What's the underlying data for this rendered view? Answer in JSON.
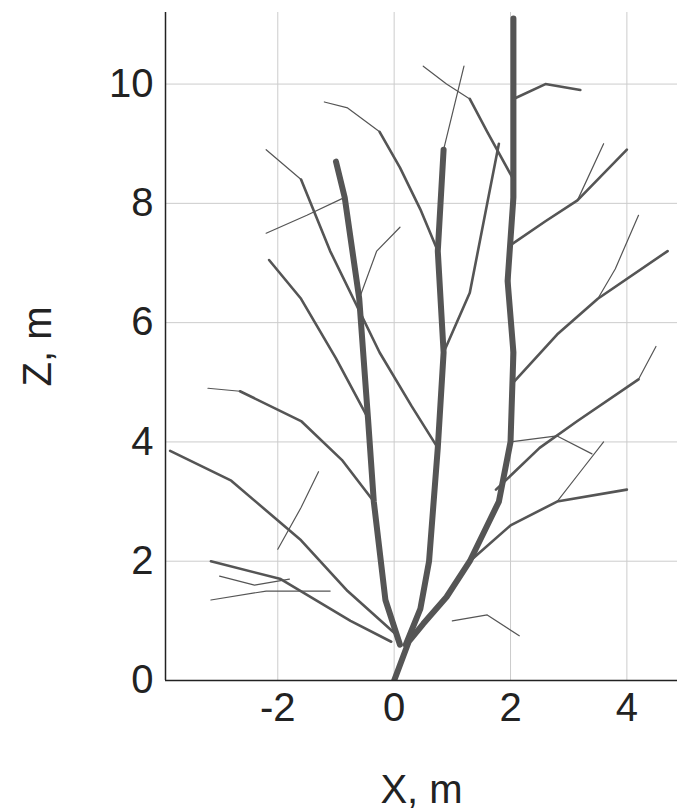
{
  "chart_data": {
    "type": "line",
    "xlabel": "X, m",
    "ylabel": "Z, m",
    "xlim": [
      -3.93,
      4.87
    ],
    "ylim": [
      0,
      11.2
    ],
    "xticks": [
      -2,
      0,
      2,
      4
    ],
    "yticks": [
      0,
      2,
      4,
      6,
      8,
      10
    ],
    "grid": true,
    "color": "#555555",
    "stems": [
      {
        "x": [
          0,
          0.25,
          0.5,
          0.9,
          1.3,
          1.8,
          2.0,
          2.05,
          1.95,
          2.05,
          2.05,
          2.05
        ],
        "z": [
          0,
          0.65,
          0.95,
          1.4,
          2.0,
          3.0,
          4.0,
          5.5,
          6.7,
          8.1,
          9.75,
          11.1
        ]
      },
      {
        "x": [
          0.2,
          0.45,
          0.6,
          0.75,
          0.85,
          0.75,
          0.85
        ],
        "z": [
          0.6,
          1.2,
          2.0,
          3.9,
          5.5,
          7.2,
          8.9
        ]
      },
      {
        "x": [
          0.1,
          -0.15,
          -0.35,
          -0.45,
          -0.6,
          -0.85,
          -1.0
        ],
        "z": [
          0.6,
          1.35,
          3.0,
          4.4,
          6.4,
          8.1,
          8.7
        ]
      }
    ],
    "branches": [
      {
        "x": [
          -0.05,
          -0.75,
          -1.95,
          -3.15
        ],
        "z": [
          0.65,
          1.0,
          1.7,
          2.0
        ]
      },
      {
        "x": [
          0.0,
          -0.8,
          -1.6,
          -2.8,
          -3.85
        ],
        "z": [
          0.8,
          1.5,
          2.35,
          3.35,
          3.85
        ]
      },
      {
        "x": [
          1.75,
          2.5,
          3.15,
          4.2
        ],
        "z": [
          3.2,
          3.9,
          4.35,
          5.05
        ]
      },
      {
        "x": [
          2.05,
          2.8,
          3.5,
          4.7
        ],
        "z": [
          5.0,
          5.8,
          6.4,
          7.2
        ]
      },
      {
        "x": [
          2.0,
          2.6,
          3.15,
          4.0
        ],
        "z": [
          7.3,
          7.7,
          8.05,
          8.9
        ]
      },
      {
        "x": [
          2.05,
          1.6,
          1.3
        ],
        "z": [
          8.4,
          9.2,
          9.75
        ]
      },
      {
        "x": [
          1.3,
          2.0,
          2.8,
          4.0
        ],
        "z": [
          2.0,
          2.6,
          3.0,
          3.2
        ]
      },
      {
        "x": [
          0.75,
          0.45,
          0.1,
          -0.25
        ],
        "z": [
          7.2,
          7.9,
          8.6,
          9.2
        ]
      },
      {
        "x": [
          0.75,
          0.3,
          -0.25,
          -1.1,
          -1.6
        ],
        "z": [
          3.9,
          4.6,
          5.5,
          7.2,
          8.4
        ]
      },
      {
        "x": [
          -0.35,
          -0.9,
          -1.6,
          -2.65
        ],
        "z": [
          3.0,
          3.7,
          4.35,
          4.85
        ]
      },
      {
        "x": [
          -0.45,
          -1.0,
          -1.6,
          -2.15
        ],
        "z": [
          4.4,
          5.4,
          6.4,
          7.05
        ]
      },
      {
        "x": [
          0.85,
          1.3,
          1.6,
          1.8
        ],
        "z": [
          5.5,
          6.5,
          8.0,
          9.0
        ]
      },
      {
        "x": [
          2.05,
          2.6,
          3.2
        ],
        "z": [
          9.75,
          10.0,
          9.9
        ]
      }
    ],
    "twigs": [
      {
        "x": [
          -3.15,
          -2.2,
          -1.1
        ],
        "z": [
          1.35,
          1.5,
          1.5
        ]
      },
      {
        "x": [
          -3.0,
          -2.4,
          -1.8
        ],
        "z": [
          1.75,
          1.6,
          1.7
        ]
      },
      {
        "x": [
          -2.0,
          -1.6,
          -1.3
        ],
        "z": [
          2.2,
          2.9,
          3.5
        ]
      },
      {
        "x": [
          1.0,
          1.6,
          2.15
        ],
        "z": [
          1.0,
          1.1,
          0.75
        ]
      },
      {
        "x": [
          2.8,
          3.2,
          3.6
        ],
        "z": [
          3.0,
          3.5,
          4.0
        ]
      },
      {
        "x": [
          4.2,
          4.5
        ],
        "z": [
          5.05,
          5.6
        ]
      },
      {
        "x": [
          3.5,
          3.8,
          4.2
        ],
        "z": [
          6.4,
          6.9,
          7.8
        ]
      },
      {
        "x": [
          3.15,
          3.6
        ],
        "z": [
          8.05,
          9.0
        ]
      },
      {
        "x": [
          1.3,
          0.9,
          0.5
        ],
        "z": [
          9.75,
          10.0,
          10.3
        ]
      },
      {
        "x": [
          -0.25,
          -0.8,
          -1.2
        ],
        "z": [
          9.2,
          9.6,
          9.7
        ]
      },
      {
        "x": [
          -1.6,
          -2.2
        ],
        "z": [
          8.4,
          8.9
        ]
      },
      {
        "x": [
          -2.65,
          -3.2
        ],
        "z": [
          4.85,
          4.9
        ]
      },
      {
        "x": [
          -0.85,
          -1.5,
          -2.2
        ],
        "z": [
          8.1,
          7.8,
          7.5
        ]
      },
      {
        "x": [
          0.85,
          1.2
        ],
        "z": [
          8.9,
          10.3
        ]
      },
      {
        "x": [
          2.0,
          2.8,
          3.4
        ],
        "z": [
          4.0,
          4.1,
          3.8
        ]
      },
      {
        "x": [
          -0.6,
          -0.3,
          0.1
        ],
        "z": [
          6.4,
          7.2,
          7.6
        ]
      }
    ]
  }
}
